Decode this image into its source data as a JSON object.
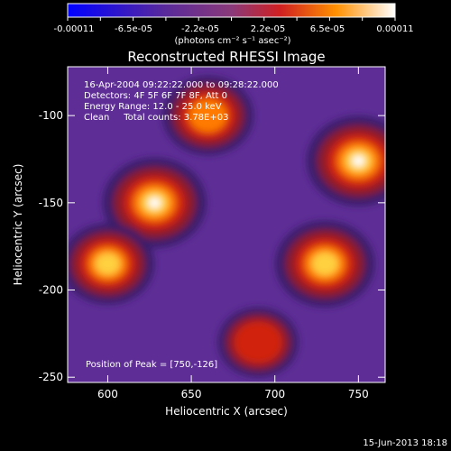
{
  "colorbar": {
    "ticks": [
      "-0.00011",
      "-6.5e-05",
      "-2.2e-05",
      "2.2e-05",
      "6.5e-05",
      "0.00011"
    ],
    "unit_label": "(photons cm⁻² s⁻¹ asec⁻²)",
    "colors": [
      "#0000ff",
      "#5a2a9a",
      "#8a4a8a",
      "#c04040",
      "#ff8000",
      "#ffffff"
    ]
  },
  "chart_data": {
    "type": "heatmap",
    "title": "Reconstructed RHESSI Image",
    "xlabel": "Heliocentric X (arcsec)",
    "ylabel": "Heliocentric Y (arcsec)",
    "xlim": [
      576,
      766
    ],
    "ylim": [
      -253,
      -72
    ],
    "x_ticks": [
      600,
      650,
      700,
      750
    ],
    "y_ticks": [
      -100,
      -150,
      -200,
      -250
    ],
    "annotations": [
      "16-Apr-2004 09:22:22.000 to 09:28:22.000",
      "Detectors: 4F 5F 6F 7F 8F, Att 0",
      "Energy Range: 12.0 - 25.0 keV",
      "Clean     Total counts: 3.78E+03"
    ],
    "peak_label": "Position of Peak = [750,-126]",
    "sources": [
      {
        "x": 628,
        "y": -150,
        "intensity": 1.0
      },
      {
        "x": 750,
        "y": -126,
        "intensity": 1.0
      },
      {
        "x": 660,
        "y": -100,
        "intensity": 0.7
      },
      {
        "x": 730,
        "y": -185,
        "intensity": 0.9
      },
      {
        "x": 600,
        "y": -185,
        "intensity": 0.75
      },
      {
        "x": 690,
        "y": -230,
        "intensity": 0.45
      }
    ]
  },
  "footer": {
    "date": "15-Jun-2013 18:18"
  }
}
